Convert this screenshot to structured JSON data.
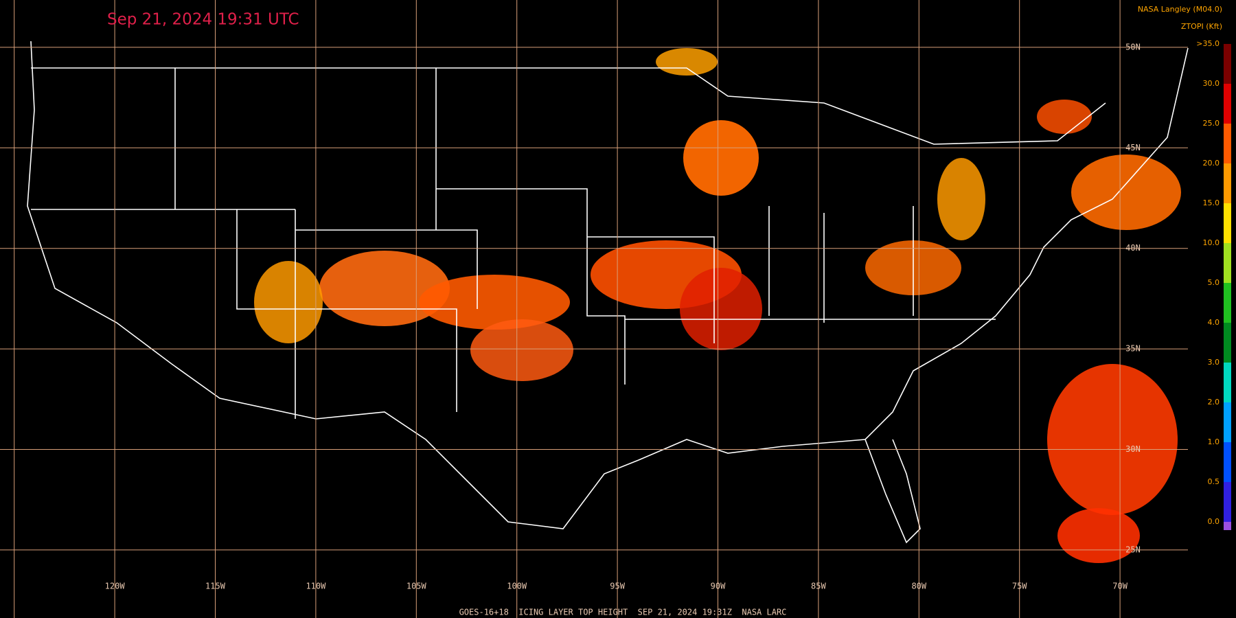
{
  "header": {
    "title": "Sep 21, 2024 19:31 UTC",
    "source": "NASA Langley (M04.0)",
    "legend_title": "ZTOPI (Kft)"
  },
  "legend": {
    "items": [
      {
        "label": ">35.0",
        "color": "#7a0000"
      },
      {
        "label": "30.0",
        "color": "#e00000"
      },
      {
        "label": "25.0",
        "color": "#ff5a00"
      },
      {
        "label": "20.0",
        "color": "#ff9a00"
      },
      {
        "label": "15.0",
        "color": "#ffe000"
      },
      {
        "label": "10.0",
        "color": "#a0e020"
      },
      {
        "label": "5.0",
        "color": "#20c020"
      },
      {
        "label": "4.0",
        "color": "#008a20"
      },
      {
        "label": "3.0",
        "color": "#00d8c0"
      },
      {
        "label": "2.0",
        "color": "#00a0ff"
      },
      {
        "label": "1.0",
        "color": "#0050ff"
      },
      {
        "label": "0.5",
        "color": "#3020e0"
      },
      {
        "label": "0.0",
        "color": "#9a50e0"
      }
    ]
  },
  "grid": {
    "longitudes": [
      "120W",
      "115W",
      "110W",
      "105W",
      "100W",
      "95W",
      "90W",
      "85W",
      "80W",
      "75W",
      "70W"
    ],
    "latitudes": [
      "50N",
      "45N",
      "40N",
      "35N",
      "30N",
      "25N"
    ]
  },
  "footer": "GOES-16+18  ICING LAYER TOP HEIGHT  SEP 21, 2024 19:31Z  NASA LARC"
}
